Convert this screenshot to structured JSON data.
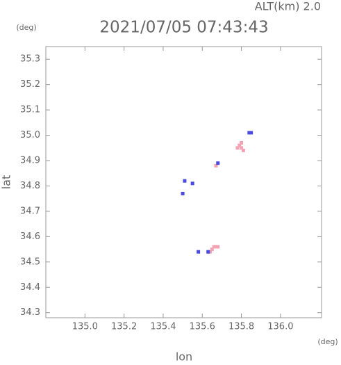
{
  "chart_data": {
    "type": "scatter",
    "title": "2021/07/05 07:43:43",
    "altitude_label": "ALT(km) 2.0",
    "xlabel": "lon",
    "ylabel": "lat",
    "x_unit": "(deg)",
    "y_unit": "(deg)",
    "xlim": [
      134.8,
      136.21
    ],
    "ylim": [
      34.28,
      35.35
    ],
    "xticks": [
      {
        "value": 135.0,
        "label": "135.0"
      },
      135.2,
      135.4,
      135.6,
      135.8,
      {
        "value": 136.0,
        "label": "136.0"
      }
    ],
    "yticks": [
      34.3,
      34.4,
      34.5,
      34.6,
      34.7,
      34.8,
      34.9,
      {
        "value": 35.0,
        "label": "35.0"
      },
      35.1,
      35.2,
      35.3
    ],
    "series": [
      {
        "color": "#f4a3b4",
        "x": [
          135.79,
          135.8,
          135.81,
          135.78,
          135.8,
          135.67,
          135.66,
          135.67,
          135.65,
          135.64,
          135.68
        ],
        "y": [
          34.96,
          34.95,
          34.94,
          34.95,
          34.97,
          34.88,
          34.56,
          34.56,
          34.55,
          34.54,
          34.56
        ]
      },
      {
        "color": "#4a4ae0",
        "x": [
          135.84,
          135.51,
          135.5,
          135.58,
          135.63,
          135.68,
          135.55,
          135.85
        ],
        "y": [
          35.01,
          34.82,
          34.77,
          34.54,
          34.54,
          34.89,
          34.81,
          35.01
        ]
      }
    ]
  }
}
